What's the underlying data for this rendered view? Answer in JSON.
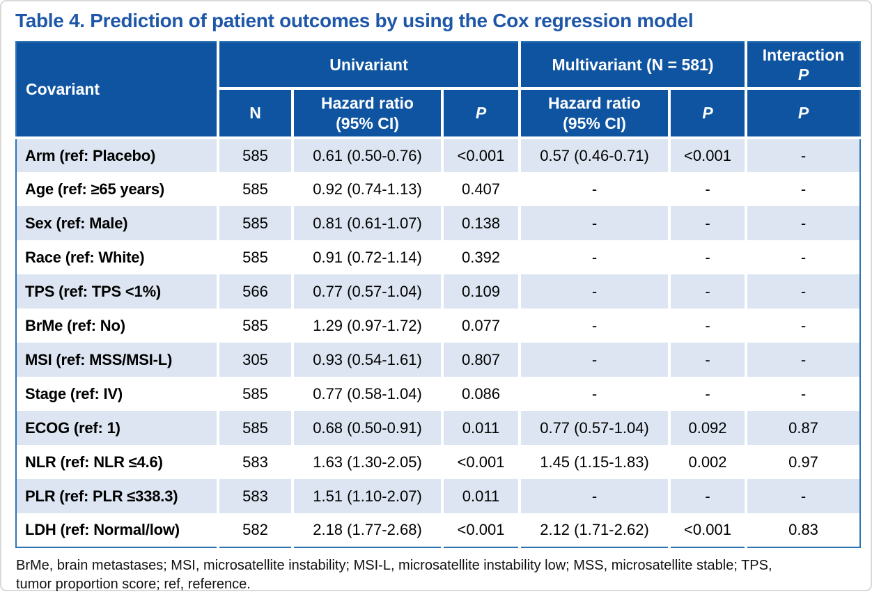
{
  "page": {
    "title": "Table 4. Prediction of patient outcomes by using the Cox regression model"
  },
  "colors": {
    "title_text": "#1E57A8",
    "header_bg": "#0F54A0",
    "header_text": "#FFFFFF",
    "row_alt_bg": "#DCE5F1",
    "row_bg": "#FFFFFF",
    "table_border": "#2E74B5",
    "page_border": "#D9D9D9",
    "body_text": "#000000"
  },
  "table": {
    "header": {
      "covariant": "Covariant",
      "group_univariant": "Univariant",
      "group_multivariant": "Multivariant (N = 581)",
      "group_interaction_line1": "Interaction",
      "group_interaction_line2": "P",
      "sub_n": "N",
      "sub_hr_uni": "Hazard ratio\n(95% CI)",
      "sub_p_uni": "P",
      "sub_hr_multi": "Hazard ratio\n(95% CI)",
      "sub_p_multi": "P",
      "sub_p_interaction": "P"
    },
    "rows": [
      {
        "covariant": "Arm (ref: Placebo)",
        "n": "585",
        "hr_uni": "0.61 (0.50-0.76)",
        "p_uni": "<0.001",
        "hr_multi": "0.57 (0.46-0.71)",
        "p_multi": "<0.001",
        "p_interaction": "-"
      },
      {
        "covariant": "Age (ref: ≥65 years)",
        "n": "585",
        "hr_uni": "0.92 (0.74-1.13)",
        "p_uni": "0.407",
        "hr_multi": "-",
        "p_multi": "-",
        "p_interaction": "-"
      },
      {
        "covariant": "Sex (ref: Male)",
        "n": "585",
        "hr_uni": "0.81 (0.61-1.07)",
        "p_uni": "0.138",
        "hr_multi": "-",
        "p_multi": "-",
        "p_interaction": "-"
      },
      {
        "covariant": "Race (ref: White)",
        "n": "585",
        "hr_uni": "0.91 (0.72-1.14)",
        "p_uni": "0.392",
        "hr_multi": "-",
        "p_multi": "-",
        "p_interaction": "-"
      },
      {
        "covariant": "TPS (ref: TPS <1%)",
        "n": "566",
        "hr_uni": "0.77 (0.57-1.04)",
        "p_uni": "0.109",
        "hr_multi": "-",
        "p_multi": "-",
        "p_interaction": "-"
      },
      {
        "covariant": "BrMe (ref: No)",
        "n": "585",
        "hr_uni": "1.29 (0.97-1.72)",
        "p_uni": "0.077",
        "hr_multi": "-",
        "p_multi": "-",
        "p_interaction": "-"
      },
      {
        "covariant": "MSI (ref: MSS/MSI-L)",
        "n": "305",
        "hr_uni": "0.93 (0.54-1.61)",
        "p_uni": "0.807",
        "hr_multi": "-",
        "p_multi": "-",
        "p_interaction": "-"
      },
      {
        "covariant": "Stage (ref: IV)",
        "n": "585",
        "hr_uni": "0.77 (0.58-1.04)",
        "p_uni": "0.086",
        "hr_multi": "-",
        "p_multi": "-",
        "p_interaction": "-"
      },
      {
        "covariant": "ECOG (ref: 1)",
        "n": "585",
        "hr_uni": "0.68 (0.50-0.91)",
        "p_uni": "0.011",
        "hr_multi": "0.77 (0.57-1.04)",
        "p_multi": "0.092",
        "p_interaction": "0.87"
      },
      {
        "covariant": "NLR (ref: NLR ≤4.6)",
        "n": "583",
        "hr_uni": "1.63 (1.30-2.05)",
        "p_uni": "<0.001",
        "hr_multi": "1.45 (1.15-1.83)",
        "p_multi": "0.002",
        "p_interaction": "0.97"
      },
      {
        "covariant": "PLR (ref: PLR ≤338.3)",
        "n": "583",
        "hr_uni": "1.51 (1.10-2.07)",
        "p_uni": "0.011",
        "hr_multi": "-",
        "p_multi": "-",
        "p_interaction": "-"
      },
      {
        "covariant": "LDH (ref: Normal/low)",
        "n": "582",
        "hr_uni": "2.18 (1.77-2.68)",
        "p_uni": "<0.001",
        "hr_multi": "2.12 (1.71-2.62)",
        "p_multi": "<0.001",
        "p_interaction": "0.83"
      }
    ]
  },
  "footnote": "BrMe, brain metastases; MSI, microsatellite instability; MSI-L, microsatellite instability low; MSS, microsatellite stable; TPS,\ntumor proportion score; ref, reference."
}
